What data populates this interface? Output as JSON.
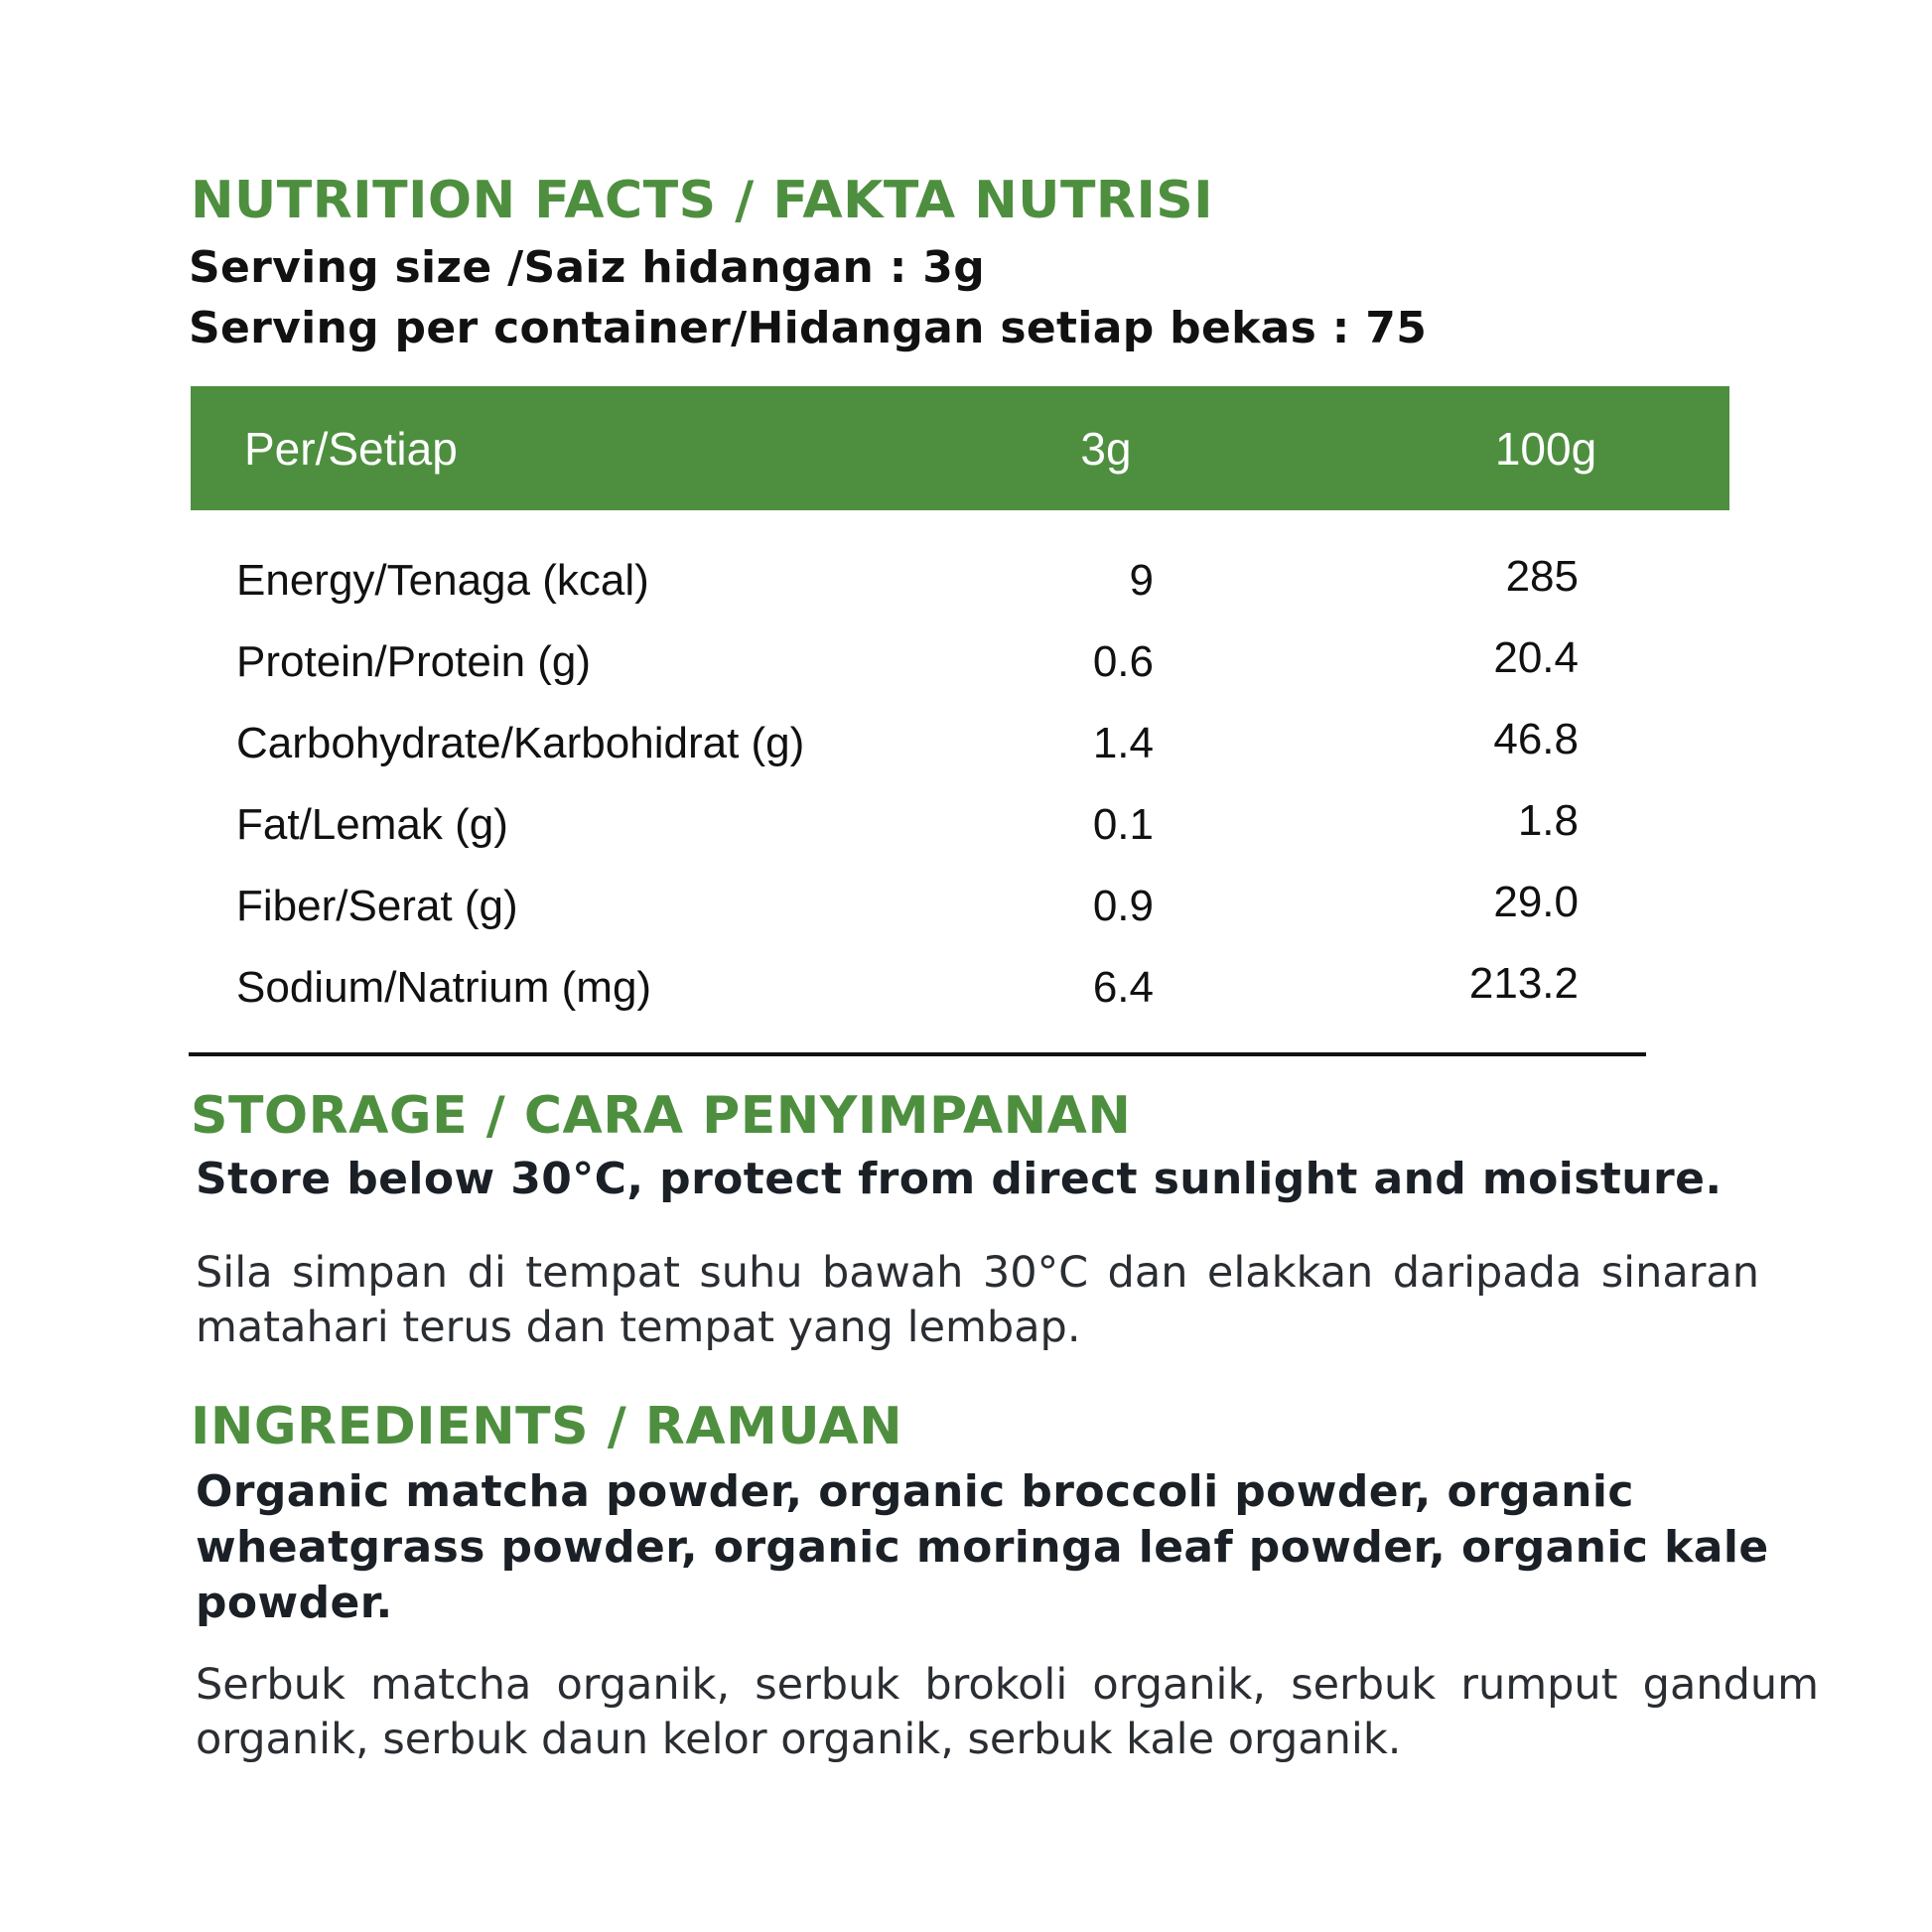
{
  "nutrition": {
    "title": "NUTRITION FACTS / FAKTA NUTRISI",
    "serving_size": "Serving size /Saiz hidangan : 3g",
    "serving_per_container": "Serving per container/Hidangan setiap bekas : 75",
    "header": {
      "per": "Per/Setiap",
      "col1": "3g",
      "col2": "100g"
    },
    "rows": [
      {
        "name": "Energy/Tenaga (kcal)",
        "v3g": "9",
        "v100g": "285"
      },
      {
        "name": "Protein/Protein (g)",
        "v3g": "0.6",
        "v100g": "20.4"
      },
      {
        "name": "Carbohydrate/Karbohidrat (g)",
        "v3g": "1.4",
        "v100g": "46.8"
      },
      {
        "name": "Fat/Lemak (g)",
        "v3g": "0.1",
        "v100g": "1.8"
      },
      {
        "name": "Fiber/Serat (g)",
        "v3g": "0.9",
        "v100g": "29.0"
      },
      {
        "name": "Sodium/Natrium (mg)",
        "v3g": "6.4",
        "v100g": "213.2"
      }
    ]
  },
  "storage": {
    "title": "STORAGE / CARA PENYIMPANAN",
    "english": "Store below 30°C, protect from direct sunlight and moisture.",
    "malay": "Sila simpan di tempat suhu bawah 30°C dan elakkan daripada sinaran matahari terus dan tempat yang lembap."
  },
  "ingredients": {
    "title": "INGREDIENTS / RAMUAN",
    "english": "Organic matcha powder, organic broccoli powder, organic wheatgrass powder, organic moringa leaf powder, organic kale powder.",
    "malay": "Serbuk matcha organik, serbuk brokoli organik, serbuk rumput gandum organik, serbuk daun kelor organik, serbuk kale organik."
  },
  "colors": {
    "accent_green": "#4e8f3f",
    "text": "#111111"
  }
}
